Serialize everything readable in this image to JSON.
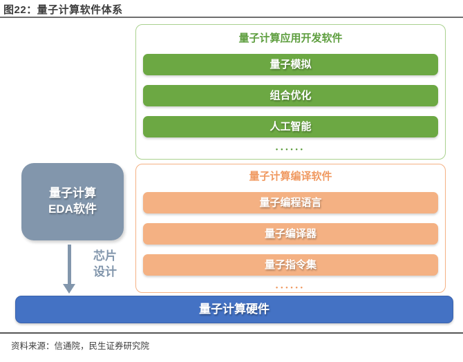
{
  "figure": {
    "title": "图22：量子计算软件体系",
    "source": "资料来源：信通院，民生证券研究院"
  },
  "diagram": {
    "app_dev_panel": {
      "title": "量子计算应用开发软件",
      "items": [
        "量子模拟",
        "组合优化",
        "人工智能"
      ],
      "ellipsis": "••••••"
    },
    "compiler_panel": {
      "title": "量子计算编译软件",
      "items": [
        "量子编程语言",
        "量子编译器",
        "量子指令集"
      ],
      "ellipsis": "••••••"
    },
    "eda_box": {
      "line1": "量子计算",
      "line2": "EDA软件"
    },
    "arrow_label": {
      "line1": "芯片",
      "line2": "设计"
    },
    "hardware_bar": "量子计算硬件"
  },
  "colors": {
    "green_bar": "#6ca843",
    "green_border": "#a9d18e",
    "green_title": "#5e9e3f",
    "orange_bar": "#f4b183",
    "orange_border": "#f4b183",
    "orange_title": "#f09a62",
    "slate_box": "#8296ac",
    "blue_bar": "#4472c4",
    "title_text": "#3d3d3d"
  }
}
